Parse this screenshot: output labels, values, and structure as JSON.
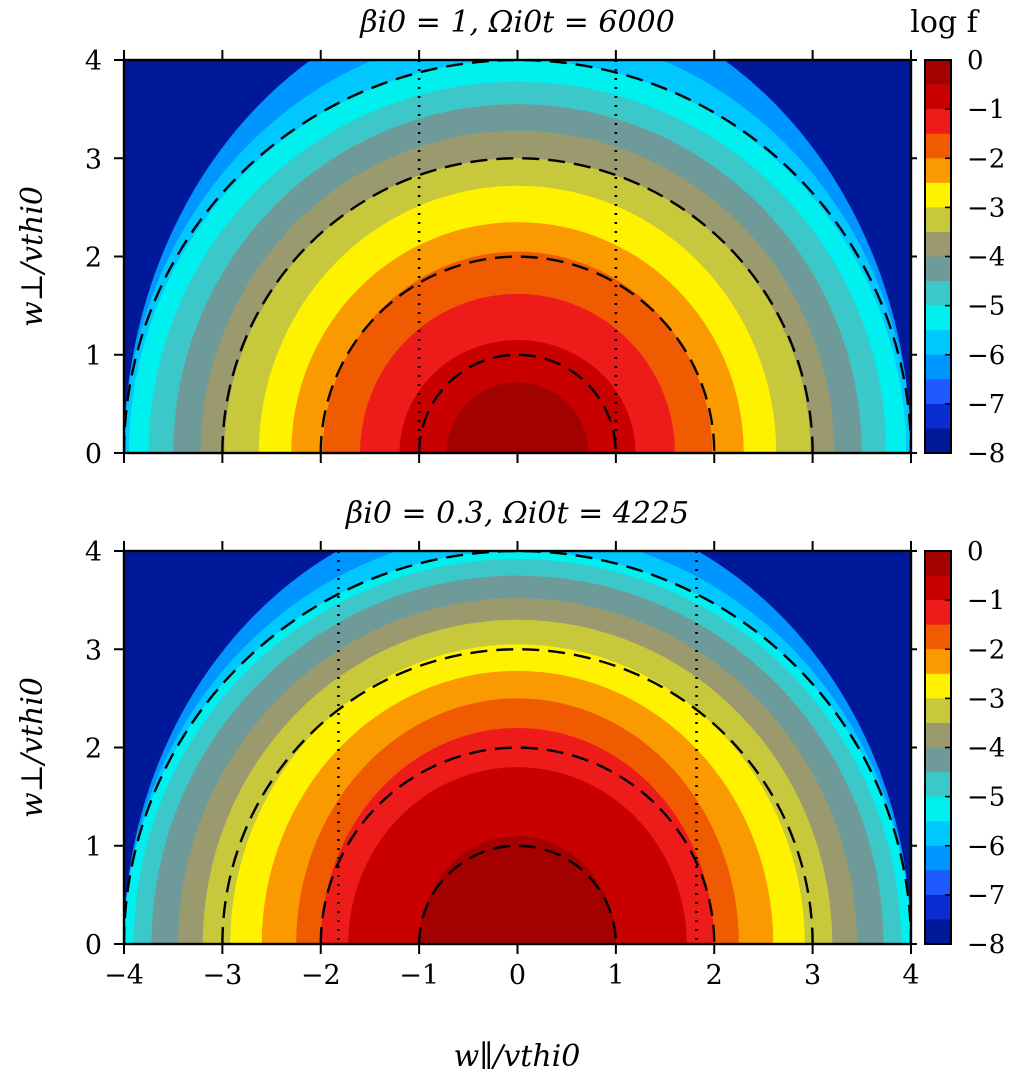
{
  "figure": {
    "xlabel": "w∥/vthi0",
    "ylabel": "w⊥/vthi0",
    "colorbar_label": "log f"
  },
  "chart_data": [
    {
      "type": "heatmap",
      "title": "βi0 = 1,  Ωi0t = 6000",
      "xlim": [
        -4,
        4
      ],
      "ylim": [
        0,
        4
      ],
      "xticks": [
        -4,
        -3,
        -2,
        -1,
        0,
        1,
        2,
        3,
        4
      ],
      "yticks": [
        0,
        1,
        2,
        3,
        4
      ],
      "colorbar": {
        "label": "log f",
        "range": [
          -8,
          0
        ],
        "ticks": [
          "0",
          "−1",
          "−2",
          "−3",
          "−4",
          "−5",
          "−6",
          "−7",
          "−8"
        ]
      },
      "contour_levels_log_f": [
        0,
        -0.5,
        -1,
        -1.5,
        -2,
        -2.5,
        -3,
        -3.5,
        -4,
        -4.5,
        -5,
        -5.5,
        -6,
        -6.5,
        -7,
        -7.5,
        -8
      ],
      "contour_extents": [
        {
          "level": -0.5,
          "w_par_halfwidth": 0.72,
          "w_perp_top": 0.72
        },
        {
          "level": -1.0,
          "w_par_halfwidth": 1.2,
          "w_perp_top": 1.15
        },
        {
          "level": -1.5,
          "w_par_halfwidth": 1.6,
          "w_perp_top": 1.62
        },
        {
          "level": -2.0,
          "w_par_halfwidth": 1.98,
          "w_perp_top": 2.05
        },
        {
          "level": -2.5,
          "w_par_halfwidth": 2.3,
          "w_perp_top": 2.35
        },
        {
          "level": -3.0,
          "w_par_halfwidth": 2.63,
          "w_perp_top": 2.72
        },
        {
          "level": -3.5,
          "w_par_halfwidth": 2.98,
          "w_perp_top": 3.0
        },
        {
          "level": -4.0,
          "w_par_halfwidth": 3.22,
          "w_perp_top": 3.28
        },
        {
          "level": -4.5,
          "w_par_halfwidth": 3.5,
          "w_perp_top": 3.55
        },
        {
          "level": -5.0,
          "w_par_halfwidth": 3.75,
          "w_perp_top": 3.78
        },
        {
          "level": -5.5,
          "w_par_halfwidth": 3.95,
          "w_perp_top": 4.0
        },
        {
          "level": -6.0,
          "w_par_halfwidth": 4.0,
          "w_perp_top": 4.3
        },
        {
          "level": -6.5,
          "w_par_halfwidth": 4.0,
          "w_perp_top": 4.7
        }
      ],
      "dashed_circles_radius": [
        1,
        2,
        3,
        4
      ],
      "dotted_lines_w_par": [
        -1,
        1
      ]
    },
    {
      "type": "heatmap",
      "title": "βi0 = 0.3,  Ωi0t = 4225",
      "xlim": [
        -4,
        4
      ],
      "ylim": [
        0,
        4
      ],
      "xticks": [
        -4,
        -3,
        -2,
        -1,
        0,
        1,
        2,
        3,
        4
      ],
      "yticks": [
        0,
        1,
        2,
        3,
        4
      ],
      "colorbar": {
        "label": "",
        "range": [
          -8,
          0
        ],
        "ticks": [
          "0",
          "−1",
          "−2",
          "−3",
          "−4",
          "−5",
          "−6",
          "−7",
          "−8"
        ]
      },
      "contour_levels_log_f": [
        0,
        -0.5,
        -1,
        -1.5,
        -2,
        -2.5,
        -3,
        -3.5,
        -4,
        -4.5,
        -5,
        -5.5,
        -6,
        -6.5,
        -7,
        -7.5,
        -8
      ],
      "contour_extents": [
        {
          "level": -0.5,
          "w_par_halfwidth": 1.0,
          "w_perp_top": 1.1
        },
        {
          "level": -1.0,
          "w_par_halfwidth": 1.72,
          "w_perp_top": 1.8
        },
        {
          "level": -1.5,
          "w_par_halfwidth": 2.0,
          "w_perp_top": 2.2
        },
        {
          "level": -2.0,
          "w_par_halfwidth": 2.25,
          "w_perp_top": 2.5
        },
        {
          "level": -2.5,
          "w_par_halfwidth": 2.6,
          "w_perp_top": 2.78
        },
        {
          "level": -3.0,
          "w_par_halfwidth": 2.92,
          "w_perp_top": 3.05
        },
        {
          "level": -3.5,
          "w_par_halfwidth": 3.2,
          "w_perp_top": 3.3
        },
        {
          "level": -4.0,
          "w_par_halfwidth": 3.45,
          "w_perp_top": 3.52
        },
        {
          "level": -4.5,
          "w_par_halfwidth": 3.72,
          "w_perp_top": 3.75
        },
        {
          "level": -5.0,
          "w_par_halfwidth": 3.9,
          "w_perp_top": 3.92
        },
        {
          "level": -5.5,
          "w_par_halfwidth": 4.0,
          "w_perp_top": 4.0
        },
        {
          "level": -6.0,
          "w_par_halfwidth": 4.0,
          "w_perp_top": 4.2
        },
        {
          "level": -6.5,
          "w_par_halfwidth": 4.0,
          "w_perp_top": 4.5
        }
      ],
      "dashed_circles_radius": [
        1,
        2,
        3,
        4
      ],
      "dotted_lines_w_par": [
        -1.82,
        1.82
      ]
    }
  ],
  "colors": {
    "levels": [
      "#a30000",
      "#c80000",
      "#ee1b1b",
      "#f05a00",
      "#fa9a00",
      "#fff200",
      "#c8c83c",
      "#9a9a6e",
      "#6e9a9a",
      "#3cc8c8",
      "#00f0f0",
      "#00c8ff",
      "#0096ff",
      "#1e5aff",
      "#0a2dd2",
      "#00199b"
    ],
    "background": "#00199b"
  }
}
